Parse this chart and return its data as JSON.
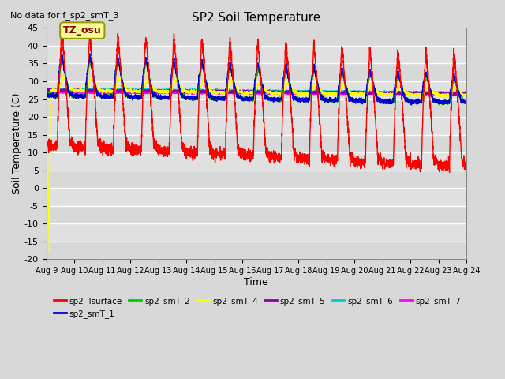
{
  "title": "SP2 Soil Temperature",
  "subtitle": "No data for f_sp2_smT_3",
  "xlabel": "Time",
  "ylabel": "Soil Temperature (C)",
  "ylim": [
    -20,
    45
  ],
  "yticks": [
    -20,
    -15,
    -10,
    -5,
    0,
    5,
    10,
    15,
    20,
    25,
    30,
    35,
    40,
    45
  ],
  "xstart_day": 9,
  "xend_day": 24,
  "bg_color": "#d8d8d8",
  "plot_bg_color": "#e0e0e0",
  "grid_color": "#f0f0f0",
  "annotation_text": "TZ_osu",
  "annotation_bg": "#ffff99",
  "annotation_border": "#999900",
  "series_colors": {
    "sp2_Tsurface": "#ff0000",
    "sp2_smT_1": "#0000cc",
    "sp2_smT_2": "#00cc00",
    "sp2_smT_4": "#ffff00",
    "sp2_smT_5": "#8800aa",
    "sp2_smT_6": "#00cccc",
    "sp2_smT_7": "#ff00ff"
  },
  "legend_order": [
    "sp2_Tsurface",
    "sp2_smT_1",
    "sp2_smT_2",
    "sp2_smT_4",
    "sp2_smT_5",
    "sp2_smT_6",
    "sp2_smT_7"
  ]
}
